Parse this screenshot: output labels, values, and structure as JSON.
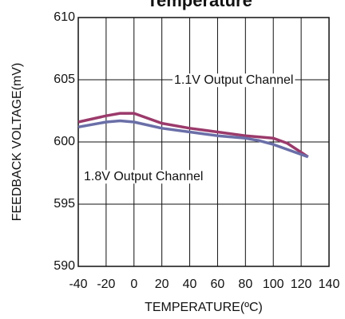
{
  "chart_data": {
    "type": "line",
    "title": "Temperature",
    "x_label": "TEMPERATURE(ºC)",
    "y_label": "FEEDBACK VOLTAGE(mV)",
    "x": [
      -40,
      -20,
      -10,
      0,
      20,
      40,
      60,
      80,
      90,
      100,
      110,
      125
    ],
    "series": [
      {
        "name": "1.1V Output Channel",
        "color": "#9b3a6b",
        "values": [
          601.6,
          602.1,
          602.3,
          602.3,
          601.5,
          601.1,
          600.8,
          600.5,
          600.4,
          600.3,
          599.9,
          598.8
        ]
      },
      {
        "name": "1.8V Output Channel",
        "color": "#6a6fa8",
        "values": [
          601.2,
          601.6,
          601.7,
          601.6,
          601.1,
          600.8,
          600.5,
          600.3,
          600.1,
          599.8,
          599.4,
          598.8
        ]
      }
    ],
    "xlim": [
      -40,
      140
    ],
    "xticks": [
      -40,
      -20,
      0,
      20,
      40,
      60,
      80,
      100,
      120,
      140
    ],
    "ylim": [
      590,
      610
    ],
    "yticks": [
      590,
      595,
      600,
      605,
      610
    ],
    "grid": true
  }
}
